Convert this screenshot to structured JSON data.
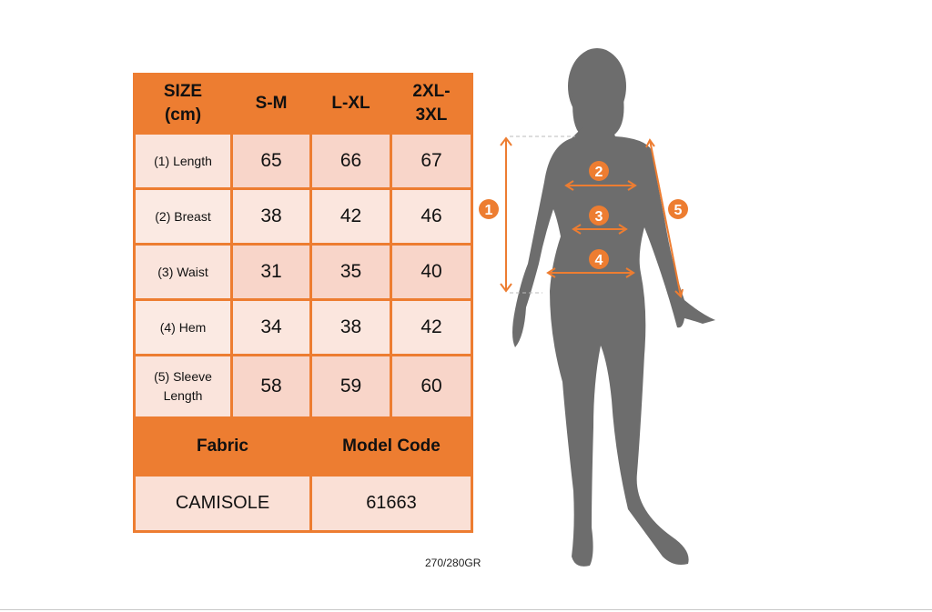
{
  "table": {
    "header": [
      "SIZE (cm)",
      "S-M",
      "L-XL",
      "2XL-3XL"
    ],
    "rows": [
      {
        "label": "(1) Length",
        "values": [
          "65",
          "66",
          "67"
        ]
      },
      {
        "label": "(2) Breast",
        "values": [
          "38",
          "42",
          "46"
        ]
      },
      {
        "label": "(3) Waist",
        "values": [
          "31",
          "35",
          "40"
        ]
      },
      {
        "label": "(4) Hem",
        "values": [
          "34",
          "38",
          "42"
        ]
      },
      {
        "label": "(5) Sleeve Length",
        "values": [
          "58",
          "59",
          "60"
        ]
      }
    ],
    "fabric_label": "Fabric",
    "model_code_label": "Model Code",
    "fabric_value": "CAMISOLE",
    "model_code_value": "61663"
  },
  "weight_note": "270/280GR",
  "figure": {
    "markers": [
      "1",
      "2",
      "3",
      "4",
      "5"
    ]
  },
  "colors": {
    "accent": "#ed7d31",
    "silhouette": "#6d6d6d",
    "cell": "#f8d5c9"
  }
}
